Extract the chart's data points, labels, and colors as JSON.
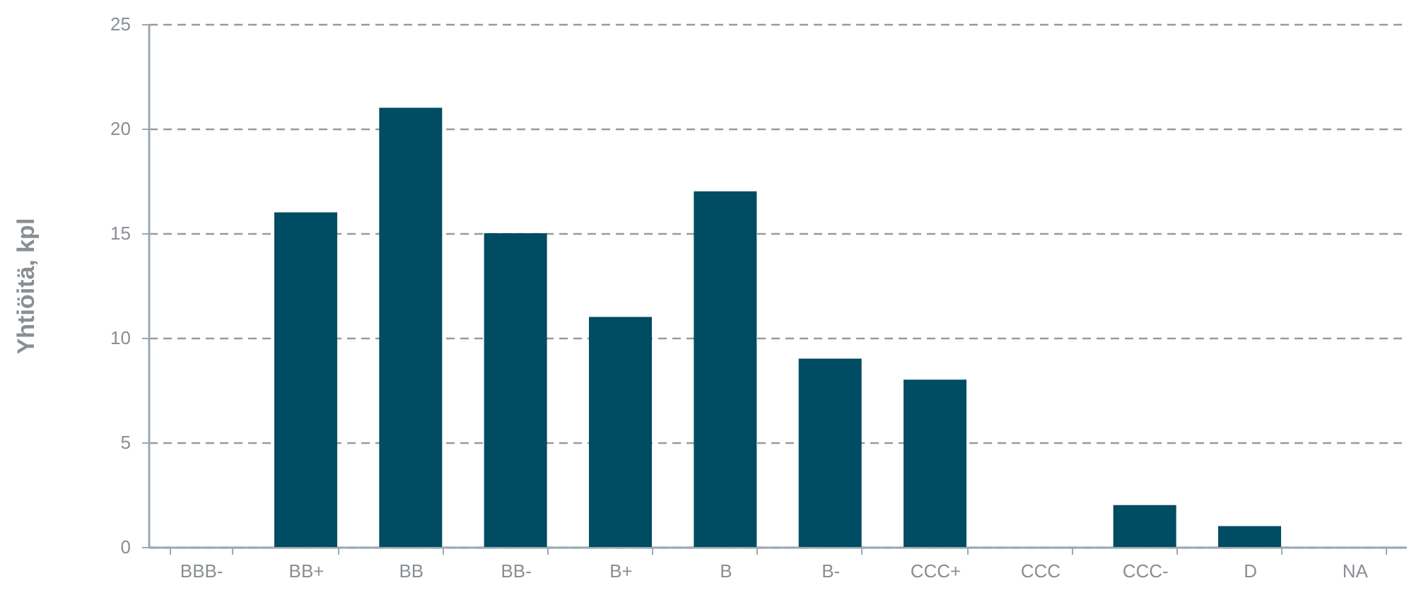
{
  "chart_data": {
    "type": "bar",
    "ylabel": "Yhtiöitä, kpl",
    "categories": [
      "BBB-",
      "BB+",
      "BB",
      "BB-",
      "B+",
      "B",
      "B-",
      "CCC+",
      "CCC",
      "CCC-",
      "D",
      "NA"
    ],
    "values": [
      0,
      16,
      21,
      15,
      11,
      17,
      9,
      8,
      0,
      2,
      1,
      0
    ],
    "color": "#004c63",
    "ylim": [
      0,
      25
    ],
    "yticks": [
      0,
      5,
      10,
      15,
      20,
      25
    ],
    "grid": "y"
  }
}
